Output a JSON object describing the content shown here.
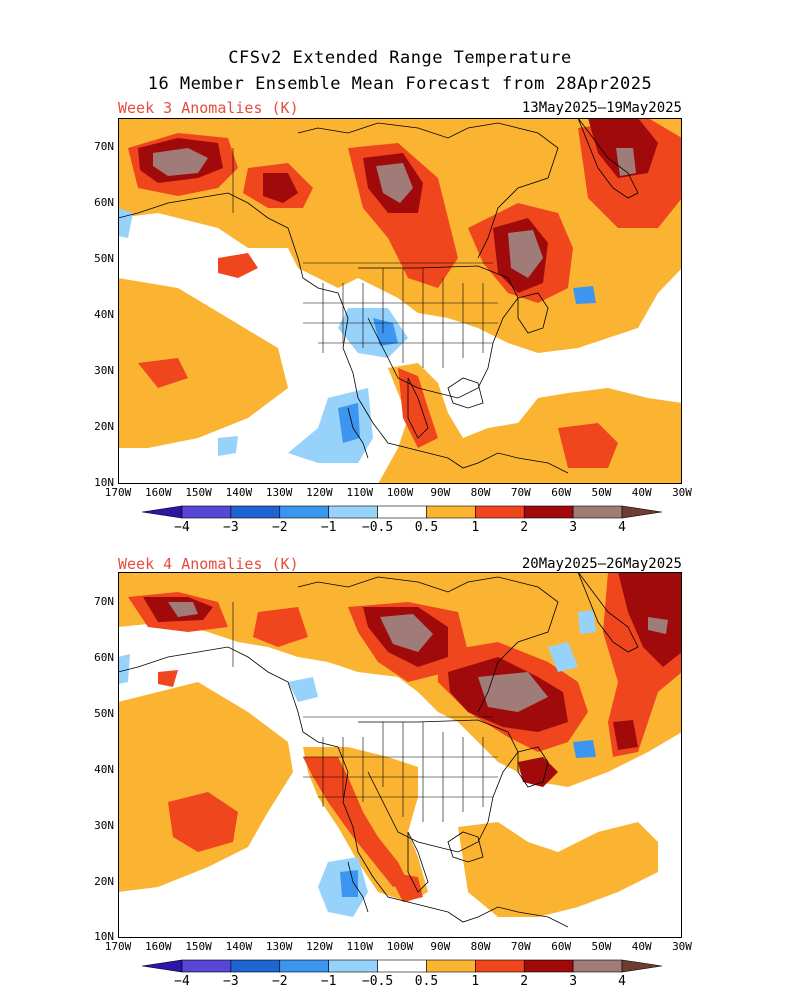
{
  "title_line1": "CFSv2 Extended Range Temperature",
  "title_line2": "16 Member Ensemble Mean Forecast from 28Apr2025",
  "panels": [
    {
      "label": "Week 3 Anomalies (K)",
      "dates": "13May2025–19May2025"
    },
    {
      "label": "Week 4 Anomalies (K)",
      "dates": "20May2025–26May2025"
    }
  ],
  "axes": {
    "lat_labels": [
      "70N",
      "60N",
      "50N",
      "40N",
      "30N",
      "20N",
      "10N"
    ],
    "lon_labels": [
      "170W",
      "160W",
      "150W",
      "140W",
      "130W",
      "120W",
      "110W",
      "100W",
      "90W",
      "80W",
      "70W",
      "60W",
      "50W",
      "40W",
      "30W"
    ]
  },
  "colorbar": {
    "ticks": [
      "−4",
      "−3",
      "−2",
      "−1",
      "−0.5",
      "0.5",
      "1",
      "2",
      "3",
      "4"
    ],
    "colors": [
      "#2a16a8",
      "#5846d6",
      "#1e64d2",
      "#3c96f0",
      "#96d2fa",
      "#ffffff",
      "#fab432",
      "#f0461e",
      "#a00a0a",
      "#a07c78",
      "#6e3c30"
    ]
  }
}
